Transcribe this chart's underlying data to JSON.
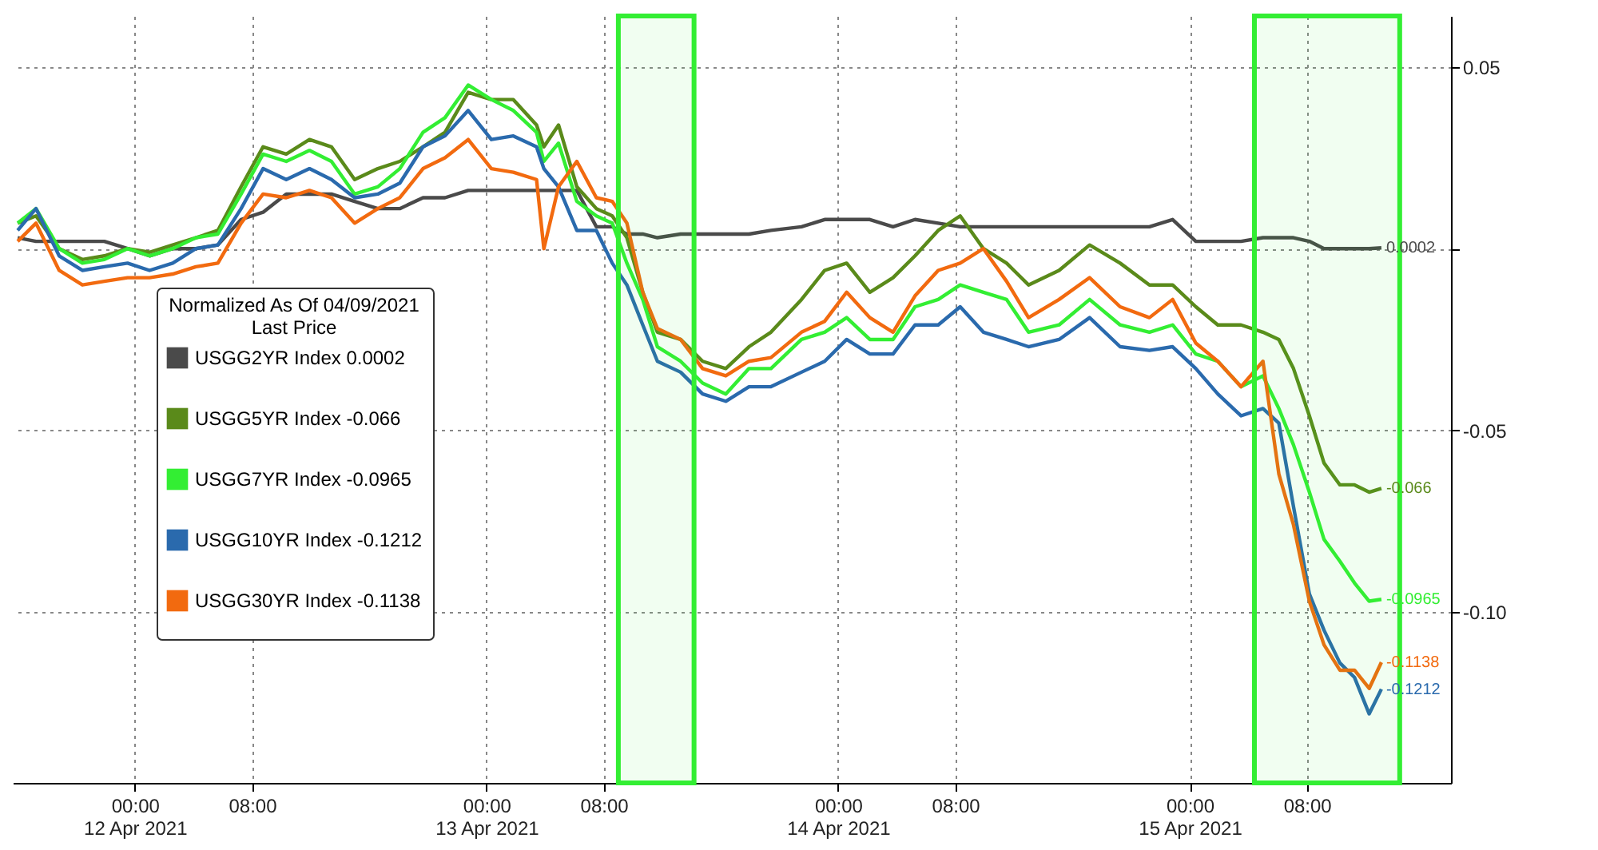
{
  "chart_data": {
    "type": "line",
    "x": [
      "2021-04-11T16:00",
      "2021-04-11T17:15",
      "2021-04-11T18:50",
      "2021-04-11T20:25",
      "2021-04-11T21:55",
      "2021-04-11T23:30",
      "2021-04-12T01:00",
      "2021-04-12T02:35",
      "2021-04-12T04:10",
      "2021-04-12T05:40",
      "2021-04-12T07:15",
      "2021-04-12T08:45",
      "2021-04-12T10:20",
      "2021-04-12T11:55",
      "2021-04-12T13:25",
      "2021-04-12T15:00",
      "2021-04-12T16:35",
      "2021-04-12T18:05",
      "2021-04-12T19:40",
      "2021-04-12T21:10",
      "2021-04-12T22:45",
      "2021-04-13T00:20",
      "2021-04-13T01:50",
      "2021-04-13T03:25",
      "2021-04-13T03:55",
      "2021-04-13T04:55",
      "2021-04-13T06:10",
      "2021-04-13T07:30",
      "2021-04-13T08:35",
      "2021-04-13T09:35",
      "2021-04-13T10:40",
      "2021-04-13T11:40",
      "2021-04-13T13:15",
      "2021-04-13T14:45",
      "2021-04-13T16:20",
      "2021-04-13T17:55",
      "2021-04-13T19:25",
      "2021-04-13T21:30",
      "2021-04-13T23:05",
      "2021-04-14T00:35",
      "2021-04-14T02:10",
      "2021-04-14T03:45",
      "2021-04-14T05:15",
      "2021-04-14T06:50",
      "2021-04-14T08:20",
      "2021-04-14T09:55",
      "2021-04-14T11:30",
      "2021-04-14T13:00",
      "2021-04-14T15:05",
      "2021-04-14T17:10",
      "2021-04-14T19:15",
      "2021-04-14T21:15",
      "2021-04-14T22:50",
      "2021-04-15T00:25",
      "2021-04-15T01:55",
      "2021-04-15T03:30",
      "2021-04-15T05:00",
      "2021-04-15T06:05",
      "2021-04-15T07:05",
      "2021-04-15T08:10",
      "2021-04-15T09:10",
      "2021-04-15T10:15",
      "2021-04-15T11:15",
      "2021-04-15T12:15",
      "2021-04-15T13:05"
    ],
    "series": [
      {
        "name": "USGG2YR Index 0.0002",
        "color": "#4a4a4a",
        "values": [
          0.003,
          0.002,
          0.002,
          0.002,
          0.002,
          0.0,
          -0.002,
          0.0,
          0.0,
          0.001,
          0.008,
          0.01,
          0.015,
          0.015,
          0.015,
          0.013,
          0.011,
          0.011,
          0.014,
          0.014,
          0.016,
          0.016,
          0.016,
          0.016,
          0.016,
          0.016,
          0.016,
          0.006,
          0.006,
          0.004,
          0.004,
          0.003,
          0.004,
          0.004,
          0.004,
          0.004,
          0.005,
          0.006,
          0.008,
          0.008,
          0.008,
          0.006,
          0.008,
          0.007,
          0.006,
          0.006,
          0.006,
          0.006,
          0.006,
          0.006,
          0.006,
          0.006,
          0.008,
          0.002,
          0.002,
          0.002,
          0.003,
          0.003,
          0.003,
          0.002,
          0.0,
          0.0,
          0.0,
          0.0,
          0.0002
        ]
      },
      {
        "name": "USGG5YR Index -0.066",
        "color": "#5a8a1a",
        "values": [
          0.007,
          0.009,
          0.0,
          -0.003,
          -0.002,
          0.0,
          -0.001,
          0.001,
          0.003,
          0.005,
          0.017,
          0.028,
          0.026,
          0.03,
          0.028,
          0.019,
          0.022,
          0.024,
          0.028,
          0.032,
          0.043,
          0.041,
          0.041,
          0.034,
          0.028,
          0.034,
          0.017,
          0.011,
          0.009,
          0.003,
          -0.012,
          -0.023,
          -0.025,
          -0.031,
          -0.033,
          -0.027,
          -0.023,
          -0.014,
          -0.006,
          -0.004,
          -0.012,
          -0.008,
          -0.002,
          0.005,
          0.009,
          0.0,
          -0.004,
          -0.01,
          -0.006,
          0.001,
          -0.004,
          -0.01,
          -0.01,
          -0.016,
          -0.021,
          -0.021,
          -0.023,
          -0.025,
          -0.033,
          -0.046,
          -0.059,
          -0.065,
          -0.065,
          -0.067,
          -0.066
        ]
      },
      {
        "name": "USGG7YR Index -0.0965",
        "color": "#33ee33",
        "values": [
          0.007,
          0.011,
          0.0,
          -0.004,
          -0.003,
          0.0,
          -0.002,
          0.0,
          0.003,
          0.004,
          0.015,
          0.026,
          0.024,
          0.027,
          0.024,
          0.015,
          0.017,
          0.022,
          0.032,
          0.036,
          0.045,
          0.041,
          0.038,
          0.032,
          0.024,
          0.029,
          0.013,
          0.009,
          0.007,
          -0.004,
          -0.014,
          -0.027,
          -0.031,
          -0.037,
          -0.04,
          -0.033,
          -0.033,
          -0.025,
          -0.023,
          -0.019,
          -0.025,
          -0.025,
          -0.016,
          -0.014,
          -0.01,
          -0.012,
          -0.014,
          -0.023,
          -0.021,
          -0.014,
          -0.021,
          -0.023,
          -0.021,
          -0.029,
          -0.031,
          -0.038,
          -0.035,
          -0.044,
          -0.054,
          -0.067,
          -0.08,
          -0.086,
          -0.092,
          -0.097,
          -0.0965
        ]
      },
      {
        "name": "USGG10YR Index -0.1212",
        "color": "#2a6aad",
        "values": [
          0.005,
          0.011,
          -0.002,
          -0.006,
          -0.005,
          -0.004,
          -0.006,
          -0.004,
          0.0,
          0.001,
          0.011,
          0.022,
          0.019,
          0.022,
          0.019,
          0.014,
          0.015,
          0.018,
          0.028,
          0.031,
          0.038,
          0.03,
          0.031,
          0.028,
          0.022,
          0.017,
          0.005,
          0.005,
          -0.004,
          -0.01,
          -0.021,
          -0.031,
          -0.034,
          -0.04,
          -0.042,
          -0.038,
          -0.038,
          -0.034,
          -0.031,
          -0.025,
          -0.029,
          -0.029,
          -0.021,
          -0.021,
          -0.016,
          -0.023,
          -0.025,
          -0.027,
          -0.025,
          -0.019,
          -0.027,
          -0.028,
          -0.027,
          -0.033,
          -0.04,
          -0.046,
          -0.044,
          -0.048,
          -0.071,
          -0.095,
          -0.105,
          -0.114,
          -0.118,
          -0.128,
          -0.1212
        ]
      },
      {
        "name": "USGG30YR Index -0.1138",
        "color": "#f26a0f",
        "values": [
          0.002,
          0.007,
          -0.006,
          -0.01,
          -0.009,
          -0.008,
          -0.008,
          -0.007,
          -0.005,
          -0.004,
          0.007,
          0.015,
          0.014,
          0.016,
          0.014,
          0.007,
          0.011,
          0.014,
          0.022,
          0.025,
          0.03,
          0.022,
          0.021,
          0.019,
          0.0,
          0.017,
          0.024,
          0.014,
          0.013,
          0.007,
          -0.012,
          -0.022,
          -0.025,
          -0.033,
          -0.035,
          -0.031,
          -0.03,
          -0.023,
          -0.02,
          -0.012,
          -0.019,
          -0.023,
          -0.013,
          -0.006,
          -0.004,
          0.0,
          -0.009,
          -0.019,
          -0.014,
          -0.008,
          -0.016,
          -0.019,
          -0.014,
          -0.026,
          -0.031,
          -0.038,
          -0.031,
          -0.062,
          -0.076,
          -0.097,
          -0.109,
          -0.116,
          -0.116,
          -0.121,
          -0.1138
        ]
      }
    ],
    "legend_title": "Normalized As Of 04/09/2021\nLast Price",
    "annotations": [
      {
        "text": "0.0002",
        "x": "2021-04-15T13:05",
        "y": 0.0002
      },
      {
        "text": "-0.066",
        "x": "2021-04-15T13:05",
        "y": -0.066
      },
      {
        "text": "-0.0965",
        "x": "2021-04-15T13:05",
        "y": -0.0965
      },
      {
        "text": "-0.1212",
        "x": "2021-04-15T13:05",
        "y": -0.1212
      },
      {
        "text": "-0.1138",
        "x": "2021-04-15T13:05",
        "y": -0.1138
      }
    ],
    "bands": [
      {
        "axis": "x",
        "from": "2021-04-13T09:00",
        "to": "2021-04-13T14:10",
        "color": "#33ee33"
      },
      {
        "axis": "x",
        "from": "2021-04-15T04:25",
        "to": "2021-04-15T14:20",
        "color": "#33ee33"
      }
    ],
    "xlim": [
      "2021-04-11T15:40",
      "2021-04-15T17:50"
    ],
    "xticks": [
      {
        "value": "2021-04-12T00:00",
        "label": "00:00\n12 Apr 2021"
      },
      {
        "value": "2021-04-12T08:00",
        "label": "08:00"
      },
      {
        "value": "2021-04-13T00:00",
        "label": "00:00\n13 Apr 2021"
      },
      {
        "value": "2021-04-13T08:00",
        "label": "08:00"
      },
      {
        "value": "2021-04-14T00:00",
        "label": "00:00\n14 Apr 2021"
      },
      {
        "value": "2021-04-14T08:00",
        "label": "08:00"
      },
      {
        "value": "2021-04-15T00:00",
        "label": "00:00\n15 Apr 2021"
      },
      {
        "value": "2021-04-15T08:00",
        "label": "08:00"
      }
    ],
    "ylim": [
      -0.147,
      0.064
    ],
    "yticks": [
      0.05,
      {
        "value": 0,
        "label": null
      },
      -0.05,
      {
        "value": -0.1,
        "label": "-0.10"
      }
    ],
    "grid": true,
    "legend": "bottom left",
    "marker": "none",
    "line_style": "solid"
  }
}
